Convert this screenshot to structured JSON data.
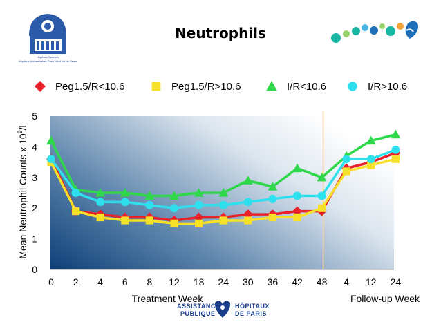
{
  "slide": {
    "title": "Neutrophils",
    "logo_left_text": [
      "Hôpitaux Beaujon",
      "Hôpitaux Universitaires Paris Nord Val de Seine"
    ],
    "logo_bottom_text": [
      "ASSISTANCE",
      "PUBLIQUE",
      "HÔPITAUX",
      "DE PARIS"
    ]
  },
  "chart_data": {
    "type": "line",
    "categories": [
      "0",
      "2",
      "4",
      "6",
      "8",
      "12",
      "18",
      "24",
      "30",
      "36",
      "42",
      "48",
      "4",
      "12",
      "24"
    ],
    "series": [
      {
        "name": "Peg1.5/R<10.6",
        "color": "#e8212b",
        "marker": "diamond",
        "values": [
          3.6,
          1.9,
          1.8,
          1.7,
          1.7,
          1.6,
          1.7,
          1.7,
          1.8,
          1.8,
          1.9,
          1.9,
          3.3,
          3.5,
          3.8
        ]
      },
      {
        "name": "Peg1.5/R>10.6",
        "color": "#f7e02a",
        "marker": "square",
        "values": [
          3.5,
          1.9,
          1.7,
          1.6,
          1.6,
          1.5,
          1.5,
          1.6,
          1.6,
          1.7,
          1.7,
          2.0,
          3.2,
          3.4,
          3.6
        ]
      },
      {
        "name": "I/R<10.6",
        "color": "#2ed84a",
        "marker": "triangle",
        "values": [
          4.2,
          2.6,
          2.5,
          2.5,
          2.4,
          2.4,
          2.5,
          2.5,
          2.9,
          2.7,
          3.3,
          3.0,
          3.7,
          4.2,
          4.4
        ]
      },
      {
        "name": "I/R>10.6",
        "color": "#2ee0ee",
        "marker": "circle",
        "values": [
          3.6,
          2.5,
          2.2,
          2.2,
          2.1,
          2.0,
          2.1,
          2.1,
          2.2,
          2.3,
          2.4,
          2.4,
          3.6,
          3.6,
          3.9
        ]
      }
    ],
    "ylim": [
      0,
      5
    ],
    "yticks": [
      0,
      1,
      2,
      3,
      4,
      5
    ],
    "ylabel": "Mean Neutrophil Counts x 10 9/l",
    "ylabel_parts": {
      "main": "Mean Neutrophil Counts x 10",
      "sup": "9",
      "tail": "/l"
    },
    "xlabel_left": "Treatment Week",
    "xlabel_right": "Follow-up Week",
    "divider_after_category": "48",
    "divider_color": "#f2e25a",
    "legend_position": "top",
    "grid": false,
    "background_gradient": [
      "#10457e",
      "#ffffff"
    ]
  }
}
